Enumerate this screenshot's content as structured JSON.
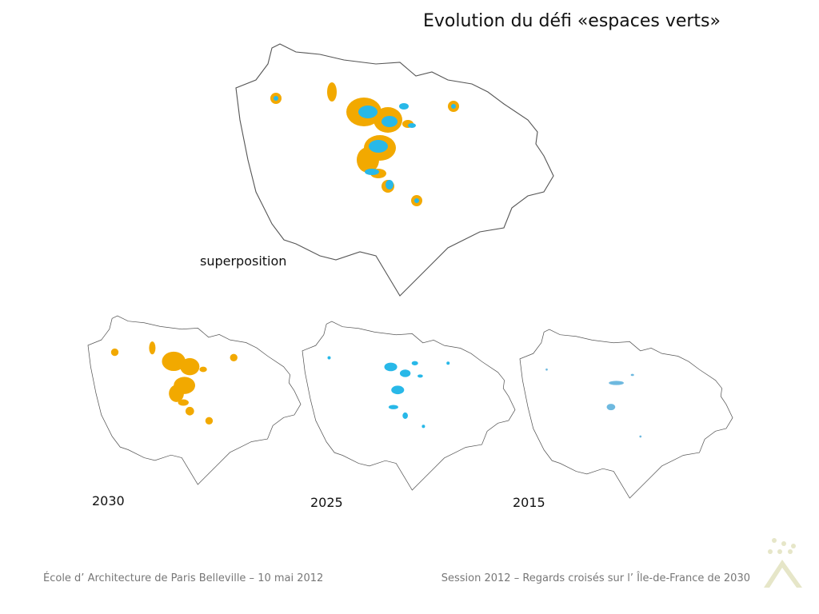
{
  "title": "Evolution du défi «espaces verts»",
  "maps": [
    {
      "label": "superposition"
    },
    {
      "label": "2030"
    },
    {
      "label": "2025"
    },
    {
      "label": "2015"
    }
  ],
  "footer": {
    "left": "École d’ Architecture de Paris Belleville – 10 mai 2012",
    "right": "Session 2012 – Regards croisés sur l’ Île-de-France de 2030"
  }
}
